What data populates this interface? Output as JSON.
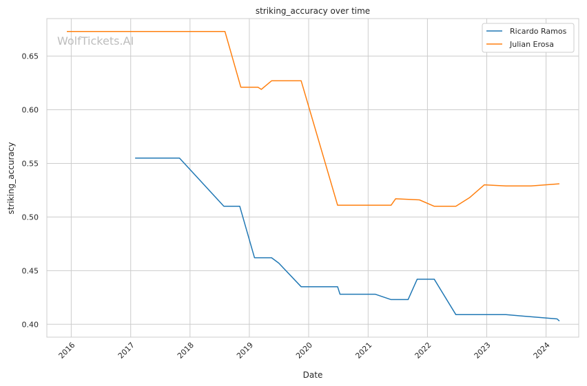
{
  "chart_data": {
    "type": "line",
    "title": "striking_accuracy over time",
    "xlabel": "Date",
    "ylabel": "striking_accuracy",
    "watermark": "WolfTickets.AI",
    "x_tick_labels": [
      "2016",
      "2017",
      "2018",
      "2019",
      "2020",
      "2021",
      "2022",
      "2023",
      "2024"
    ],
    "y_tick_labels": [
      "0.40",
      "0.45",
      "0.50",
      "0.55",
      "0.60",
      "0.65"
    ],
    "xlim": [
      "2015-08-04",
      "2024-07-20"
    ],
    "ylim": [
      0.388,
      0.685
    ],
    "grid": true,
    "legend_position": "top-right",
    "series": [
      {
        "name": "Ricardo Ramos",
        "color": "#1f77b4",
        "points": [
          [
            "2017-01-28",
            0.555
          ],
          [
            "2017-10-28",
            0.555
          ],
          [
            "2018-07-28",
            0.51
          ],
          [
            "2018-11-03",
            0.51
          ],
          [
            "2019-02-02",
            0.462
          ],
          [
            "2019-05-18",
            0.462
          ],
          [
            "2019-07-01",
            0.457
          ],
          [
            "2019-11-16",
            0.435
          ],
          [
            "2020-06-27",
            0.435
          ],
          [
            "2020-07-12",
            0.428
          ],
          [
            "2021-02-13",
            0.428
          ],
          [
            "2021-05-22",
            0.423
          ],
          [
            "2021-09-04",
            0.423
          ],
          [
            "2021-10-30",
            0.442
          ],
          [
            "2022-02-12",
            0.442
          ],
          [
            "2022-06-25",
            0.409
          ],
          [
            "2023-04-29",
            0.409
          ],
          [
            "2024-03-09",
            0.405
          ],
          [
            "2024-03-23",
            0.403
          ]
        ]
      },
      {
        "name": "Julian Erosa",
        "color": "#ff7f0e",
        "points": [
          [
            "2015-12-05",
            0.673
          ],
          [
            "2018-08-04",
            0.673
          ],
          [
            "2018-11-10",
            0.621
          ],
          [
            "2019-02-23",
            0.621
          ],
          [
            "2019-03-16",
            0.619
          ],
          [
            "2019-05-18",
            0.627
          ],
          [
            "2019-11-16",
            0.627
          ],
          [
            "2020-06-27",
            0.511
          ],
          [
            "2021-05-22",
            0.511
          ],
          [
            "2021-06-19",
            0.517
          ],
          [
            "2021-11-13",
            0.516
          ],
          [
            "2022-02-12",
            0.51
          ],
          [
            "2022-06-25",
            0.51
          ],
          [
            "2022-09-17",
            0.518
          ],
          [
            "2022-12-17",
            0.53
          ],
          [
            "2023-04-29",
            0.529
          ],
          [
            "2023-09-30",
            0.529
          ],
          [
            "2024-03-23",
            0.531
          ]
        ]
      }
    ]
  }
}
